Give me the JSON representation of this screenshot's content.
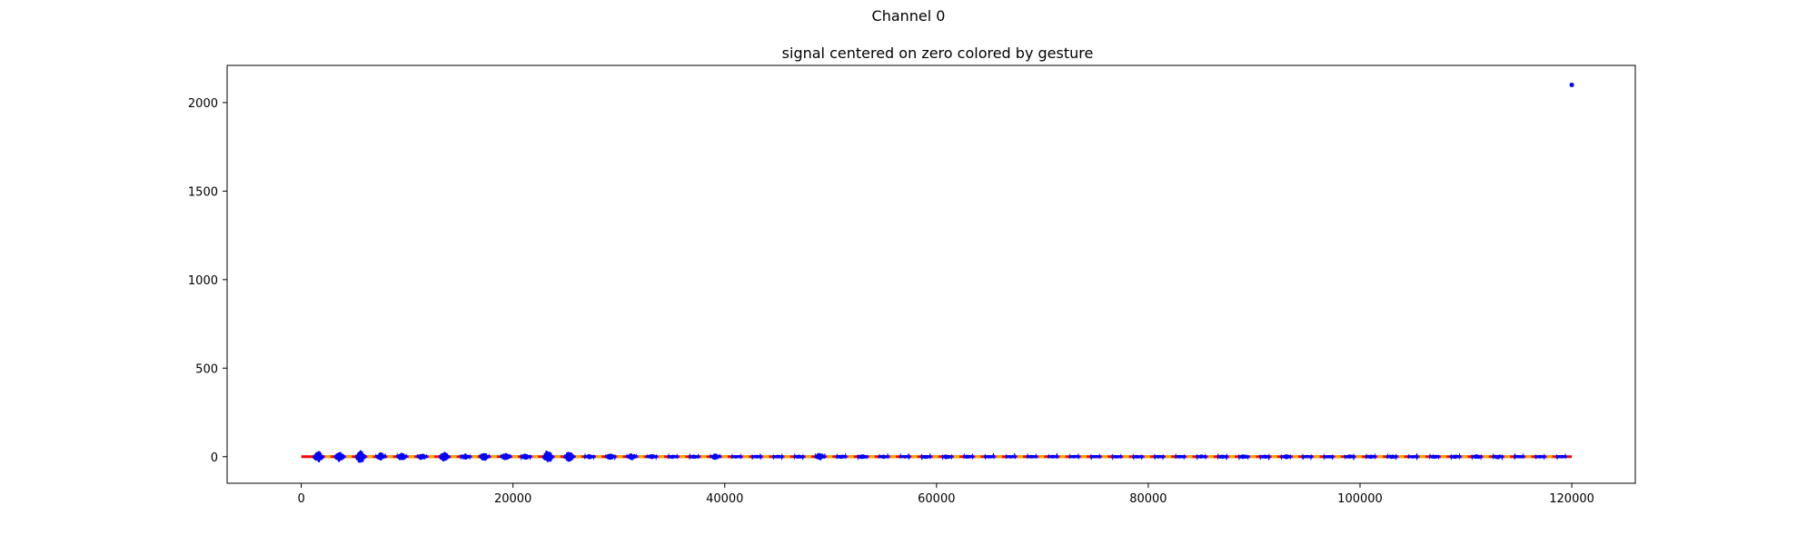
{
  "figure": {
    "suptitle": "Channel 0"
  },
  "chart_data": {
    "type": "line",
    "title": "signal centered on zero colored by gesture",
    "xlabel": "",
    "ylabel": "",
    "xlim": [
      -7000,
      126000
    ],
    "ylim": [
      -150,
      2210
    ],
    "xticks": [
      0,
      20000,
      40000,
      60000,
      80000,
      100000,
      120000
    ],
    "yticks": [
      0,
      500,
      1000,
      1500,
      2000
    ],
    "grid": false,
    "legend": "none",
    "series": [
      {
        "color": "#ff0000",
        "x": [
          0,
          120000
        ],
        "y": [
          0,
          0
        ]
      },
      {
        "color": "#ffa500",
        "x": [
          0,
          120000
        ],
        "y": [
          0,
          0
        ]
      },
      {
        "color": "#0000ff",
        "burst_centers": [
          1600,
          3600,
          5600,
          7500,
          9500,
          11400,
          13500,
          15500,
          17300,
          19300,
          21200,
          23300,
          25300,
          27200,
          29200,
          31200,
          33100,
          35100,
          37100,
          39100,
          41100,
          43000,
          45000,
          47000,
          49000,
          51000,
          53000,
          55000,
          57000,
          59000,
          61000,
          63000,
          65000,
          67000,
          69000,
          71000,
          73000,
          75000,
          77000,
          79000,
          81000,
          83000,
          85000,
          87000,
          89000,
          91000,
          93000,
          95000,
          97000,
          99000,
          101000,
          103000,
          105000,
          107000,
          109000,
          111000,
          113000,
          115000,
          117000,
          119000
        ],
        "burst_amplitudes": [
          33,
          30,
          38,
          25,
          22,
          20,
          28,
          18,
          24,
          22,
          18,
          38,
          30,
          15,
          18,
          20,
          15,
          12,
          12,
          18,
          10,
          10,
          10,
          12,
          22,
          12,
          14,
          12,
          10,
          12,
          14,
          12,
          10,
          10,
          10,
          10,
          10,
          10,
          10,
          10,
          10,
          10,
          12,
          12,
          14,
          12,
          14,
          10,
          10,
          12,
          12,
          12,
          10,
          12,
          12,
          14,
          14,
          10,
          10,
          10
        ],
        "outlier": {
          "x": 120000,
          "y": 2100
        }
      }
    ]
  }
}
